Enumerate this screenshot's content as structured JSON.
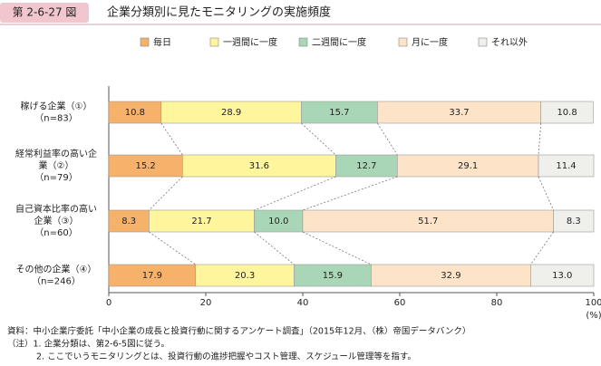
{
  "chart_data": {
    "type": "stacked-bar-horizontal",
    "figure_label": "第 2-6-27 図",
    "title": "企業分類別に見たモニタリングの実施頻度",
    "categories": [
      [
        "稼げる企業（①）",
        "（n=83）"
      ],
      [
        "経常利益率の高い企",
        "業（②）",
        "（n=79）"
      ],
      [
        "自己資本比率の高い",
        "企業（③）",
        "（n=60）"
      ],
      [
        "その他の企業（④）",
        "（n=246）"
      ]
    ],
    "series": [
      {
        "name": "毎日",
        "color": "#f6b26b",
        "values": [
          10.8,
          15.2,
          8.3,
          17.9
        ]
      },
      {
        "name": "一週間に一度",
        "color": "#fff59d",
        "values": [
          28.9,
          31.6,
          21.7,
          20.3
        ]
      },
      {
        "name": "二週間に一度",
        "color": "#a9d6b6",
        "values": [
          15.7,
          12.7,
          10.0,
          15.9
        ],
        "value_labels": [
          "15.7",
          "12.7",
          "10.0",
          "15.9"
        ]
      },
      {
        "name": "月に一度",
        "color": "#fde4c9",
        "values": [
          33.7,
          29.1,
          51.7,
          32.9
        ]
      },
      {
        "name": "それ以外",
        "color": "#efefec",
        "values": [
          10.8,
          11.4,
          8.3,
          13.0
        ],
        "value_labels": [
          "10.8",
          "11.4",
          "8.3",
          "13.0"
        ]
      }
    ],
    "xlim": [
      0,
      100
    ],
    "xticks": [
      0,
      20,
      40,
      60,
      80,
      100
    ],
    "x_unit": "(%)",
    "notes": [
      "資料：中小企業庁委託「中小企業の成長と投資行動に関するアンケート調査」（2015年12月、（株）帝国データバンク）",
      "（注）1. 企業分類は、第2-6-5図に従う。",
      "2. ここでいうモニタリングとは、投資行動の進捗把握やコスト管理、スケジュール管理等を指す。"
    ]
  }
}
